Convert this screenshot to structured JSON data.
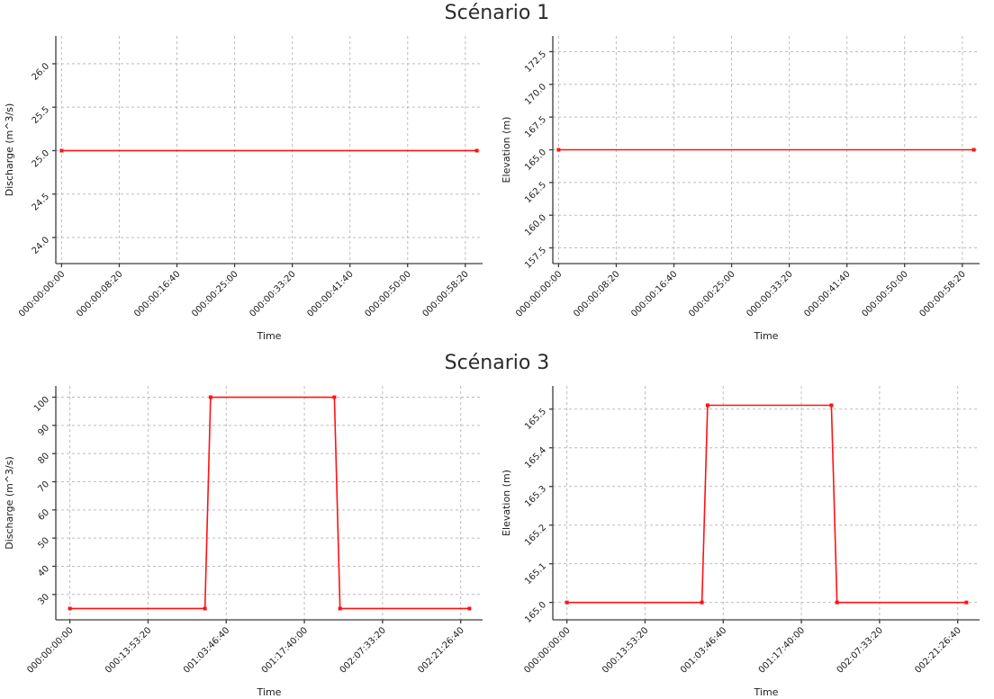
{
  "style": {
    "background": "#ffffff",
    "line_color": "#ff1212",
    "grid_color": "#bdbdbd",
    "spine_color": "#3c3c3c",
    "text_color": "#1c1c1c",
    "title_color": "#2b2b2b"
  },
  "sections": [
    {
      "title": "Scénario 1"
    },
    {
      "title": "Scénario 3"
    }
  ],
  "chart_data": [
    {
      "id": "scenario1-discharge",
      "type": "line",
      "xlabel": "Time",
      "ylabel": "Discharge (m^3/s)",
      "xlim": [
        -50,
        3650
      ],
      "ylim": [
        23.7,
        26.32
      ],
      "x_ticks": [
        {
          "v": 0,
          "label": "000:00:00:00"
        },
        {
          "v": 500,
          "label": "000:00:08:20"
        },
        {
          "v": 1000,
          "label": "000:00:16:40"
        },
        {
          "v": 1500,
          "label": "000:00:25:00"
        },
        {
          "v": 2000,
          "label": "000:00:33:20"
        },
        {
          "v": 2500,
          "label": "000:00:41:40"
        },
        {
          "v": 3000,
          "label": "000:00:50:00"
        },
        {
          "v": 3500,
          "label": "000:00:58:20"
        }
      ],
      "y_ticks": [
        {
          "v": 24.0,
          "label": "24.0"
        },
        {
          "v": 24.5,
          "label": "24.5"
        },
        {
          "v": 25.0,
          "label": "25.0"
        },
        {
          "v": 25.5,
          "label": "25.5"
        },
        {
          "v": 26.0,
          "label": "26.0"
        }
      ],
      "series": [
        {
          "color": "#ff1212",
          "x": [
            0,
            3600
          ],
          "y": [
            25.0,
            25.0
          ]
        }
      ]
    },
    {
      "id": "scenario1-elevation",
      "type": "line",
      "xlabel": "Time",
      "ylabel": "Elevation (m)",
      "xlim": [
        -50,
        3650
      ],
      "ylim": [
        156.3,
        173.7
      ],
      "x_ticks": [
        {
          "v": 0,
          "label": "000:00:00:00"
        },
        {
          "v": 500,
          "label": "000:00:08:20"
        },
        {
          "v": 1000,
          "label": "000:00:16:40"
        },
        {
          "v": 1500,
          "label": "000:00:25:00"
        },
        {
          "v": 2000,
          "label": "000:00:33:20"
        },
        {
          "v": 2500,
          "label": "000:00:41:40"
        },
        {
          "v": 3000,
          "label": "000:00:50:00"
        },
        {
          "v": 3500,
          "label": "000:00:58:20"
        }
      ],
      "y_ticks": [
        {
          "v": 157.5,
          "label": "157.5"
        },
        {
          "v": 160.0,
          "label": "160.0"
        },
        {
          "v": 162.5,
          "label": "162.5"
        },
        {
          "v": 165.0,
          "label": "165.0"
        },
        {
          "v": 167.5,
          "label": "167.5"
        },
        {
          "v": 170.0,
          "label": "170.0"
        },
        {
          "v": 172.5,
          "label": "172.5"
        }
      ],
      "series": [
        {
          "color": "#ff1212",
          "x": [
            0,
            3600
          ],
          "y": [
            165.0,
            165.0
          ]
        }
      ]
    },
    {
      "id": "scenario3-discharge",
      "type": "line",
      "xlabel": "Time",
      "ylabel": "Discharge (m^3/s)",
      "xlim": [
        -9000,
        264000
      ],
      "ylim": [
        21,
        104
      ],
      "x_ticks": [
        {
          "v": 0,
          "label": "000:00:00:00"
        },
        {
          "v": 50000,
          "label": "000:13:53:20"
        },
        {
          "v": 100000,
          "label": "001:03:46:40"
        },
        {
          "v": 150000,
          "label": "001:17:40:00"
        },
        {
          "v": 200000,
          "label": "002:07:33:20"
        },
        {
          "v": 250000,
          "label": "002:21:26:40"
        }
      ],
      "y_ticks": [
        {
          "v": 30,
          "label": "30"
        },
        {
          "v": 40,
          "label": "40"
        },
        {
          "v": 50,
          "label": "50"
        },
        {
          "v": 60,
          "label": "60"
        },
        {
          "v": 70,
          "label": "70"
        },
        {
          "v": 80,
          "label": "80"
        },
        {
          "v": 90,
          "label": "90"
        },
        {
          "v": 100,
          "label": "100"
        }
      ],
      "series": [
        {
          "color": "#ff1212",
          "x": [
            0,
            86400,
            90000,
            169200,
            172800,
            255600
          ],
          "y": [
            25,
            25,
            100,
            100,
            25,
            25
          ]
        }
      ]
    },
    {
      "id": "scenario3-elevation",
      "type": "line",
      "xlabel": "Time",
      "ylabel": "Elevation (m)",
      "xlim": [
        -9000,
        264000
      ],
      "ylim": [
        164.955,
        165.56
      ],
      "x_ticks": [
        {
          "v": 0,
          "label": "000:00:00:00"
        },
        {
          "v": 50000,
          "label": "000:13:53:20"
        },
        {
          "v": 100000,
          "label": "001:03:46:40"
        },
        {
          "v": 150000,
          "label": "001:17:40:00"
        },
        {
          "v": 200000,
          "label": "002:07:33:20"
        },
        {
          "v": 250000,
          "label": "002:21:26:40"
        }
      ],
      "y_ticks": [
        {
          "v": 165.0,
          "label": "165.0"
        },
        {
          "v": 165.1,
          "label": "165.1"
        },
        {
          "v": 165.2,
          "label": "165.2"
        },
        {
          "v": 165.3,
          "label": "165.3"
        },
        {
          "v": 165.4,
          "label": "165.4"
        },
        {
          "v": 165.5,
          "label": "165.5"
        }
      ],
      "series": [
        {
          "color": "#ff1212",
          "x": [
            0,
            86400,
            90000,
            169200,
            172800,
            255600
          ],
          "y": [
            165.0,
            165.0,
            165.51,
            165.51,
            165.0,
            165.0
          ]
        }
      ]
    }
  ]
}
